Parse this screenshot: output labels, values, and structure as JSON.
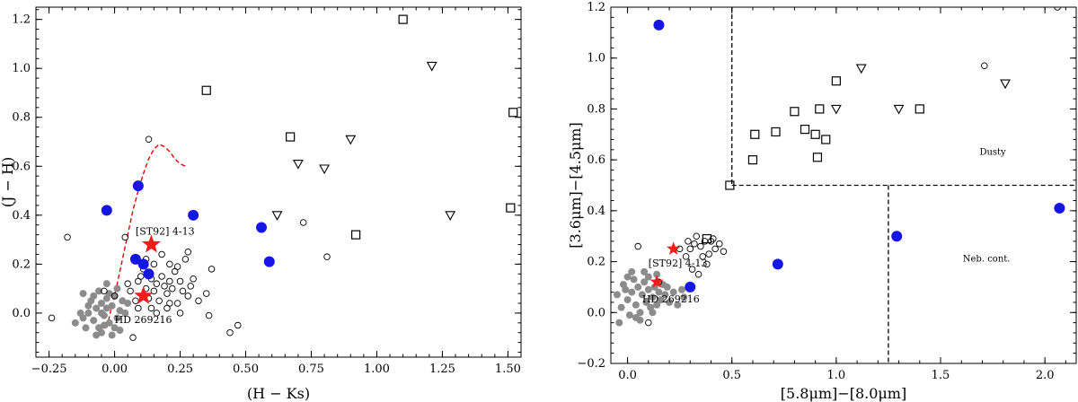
{
  "chart_data": [
    {
      "type": "scatter",
      "xlabel": "(H − Ks)",
      "ylabel": "(J − H)",
      "xlim": [
        -0.3,
        1.55
      ],
      "ylim": [
        -0.18,
        1.25
      ],
      "xticks": [
        -0.25,
        0.0,
        0.25,
        0.5,
        0.75,
        1.0,
        1.25,
        1.5
      ],
      "xtick_labels": [
        "−0.25",
        "0.00",
        "0.25",
        "0.50",
        "0.75",
        "1.00",
        "1.25",
        "1.50"
      ],
      "yticks": [
        0.0,
        0.2,
        0.4,
        0.6,
        0.8,
        1.0,
        1.2
      ],
      "ytick_labels": [
        "0.0",
        "0.2",
        "0.4",
        "0.6",
        "0.8",
        "1.0",
        "1.2"
      ],
      "series": [
        {
          "marker": "circle-filled",
          "color": "#8c8c8c",
          "points": [
            [
              -0.15,
              -0.04
            ],
            [
              -0.12,
              -0.02
            ],
            [
              -0.1,
              0.0
            ],
            [
              -0.08,
              -0.03
            ],
            [
              -0.07,
              0.02
            ],
            [
              -0.06,
              -0.06
            ],
            [
              -0.05,
              0.04
            ],
            [
              -0.04,
              -0.01
            ],
            [
              -0.03,
              0.06
            ],
            [
              -0.02,
              -0.04
            ],
            [
              -0.01,
              0.03
            ],
            [
              0.0,
              0.07
            ],
            [
              0.01,
              -0.02
            ],
            [
              0.02,
              0.01
            ],
            [
              0.03,
              0.05
            ],
            [
              -0.09,
              0.05
            ],
            [
              -0.11,
              -0.06
            ],
            [
              -0.05,
              -0.08
            ],
            [
              0.0,
              -0.06
            ],
            [
              0.04,
              0.0
            ],
            [
              -0.02,
              0.08
            ],
            [
              -0.06,
              0.09
            ],
            [
              -0.1,
              0.03
            ],
            [
              -0.04,
              -0.05
            ],
            [
              0.02,
              -0.07
            ],
            [
              -0.08,
              0.07
            ],
            [
              -0.03,
              0.12
            ],
            [
              0.01,
              0.1
            ],
            [
              -0.13,
              0.0
            ],
            [
              -0.07,
              -0.09
            ],
            [
              -0.12,
              0.08
            ],
            [
              -0.03,
              0.02
            ],
            [
              -0.01,
              -0.09
            ],
            [
              0.05,
              0.04
            ],
            [
              -0.05,
              0.0
            ]
          ]
        },
        {
          "marker": "circle-open",
          "color": "#000000",
          "points": [
            [
              -0.24,
              -0.02
            ],
            [
              -0.18,
              0.31
            ],
            [
              0.04,
              0.31
            ],
            [
              0.13,
              0.71
            ],
            [
              -0.04,
              0.09
            ],
            [
              0.0,
              0.07
            ],
            [
              0.05,
              0.12
            ],
            [
              0.06,
              0.09
            ],
            [
              0.08,
              0.05
            ],
            [
              0.09,
              0.13
            ],
            [
              0.1,
              0.15
            ],
            [
              0.11,
              0.18
            ],
            [
              0.12,
              0.1
            ],
            [
              0.13,
              0.06
            ],
            [
              0.14,
              0.14
            ],
            [
              0.15,
              0.09
            ],
            [
              0.16,
              0.12
            ],
            [
              0.17,
              0.05
            ],
            [
              0.18,
              0.15
            ],
            [
              0.19,
              0.11
            ],
            [
              0.2,
              0.08
            ],
            [
              0.21,
              0.13
            ],
            [
              0.22,
              0.1
            ],
            [
              0.23,
              0.17
            ],
            [
              0.24,
              0.04
            ],
            [
              0.25,
              0.13
            ],
            [
              0.26,
              0.09
            ],
            [
              0.27,
              0.22
            ],
            [
              0.28,
              0.07
            ],
            [
              0.29,
              0.11
            ],
            [
              0.3,
              0.14
            ],
            [
              0.32,
              0.05
            ],
            [
              0.15,
              0.2
            ],
            [
              0.18,
              0.24
            ],
            [
              0.21,
              0.2
            ],
            [
              0.24,
              0.19
            ],
            [
              0.28,
              0.25
            ],
            [
              0.12,
              0.22
            ],
            [
              0.09,
              0.02
            ],
            [
              0.14,
              0.02
            ],
            [
              0.2,
              0.02
            ],
            [
              0.25,
              0.0
            ],
            [
              0.16,
              0.0
            ],
            [
              0.21,
              0.04
            ],
            [
              0.35,
              0.08
            ],
            [
              0.36,
              -0.01
            ],
            [
              0.37,
              0.18
            ],
            [
              0.44,
              -0.08
            ],
            [
              0.47,
              -0.05
            ],
            [
              0.07,
              -0.1
            ],
            [
              0.72,
              0.37
            ],
            [
              0.81,
              0.23
            ]
          ]
        },
        {
          "marker": "circle-filled",
          "color": "#1515e6",
          "points": [
            [
              -0.03,
              0.42
            ],
            [
              0.09,
              0.52
            ],
            [
              0.3,
              0.4
            ],
            [
              0.08,
              0.22
            ],
            [
              0.11,
              0.2
            ],
            [
              0.13,
              0.16
            ],
            [
              0.56,
              0.35
            ],
            [
              0.59,
              0.21
            ]
          ]
        },
        {
          "marker": "square-open",
          "color": "#000000",
          "points": [
            [
              0.35,
              0.91
            ],
            [
              0.67,
              0.72
            ],
            [
              0.92,
              0.32
            ],
            [
              1.1,
              1.2
            ],
            [
              1.52,
              0.82
            ],
            [
              1.51,
              0.43
            ]
          ]
        },
        {
          "marker": "triangle-down-open",
          "color": "#000000",
          "points": [
            [
              0.7,
              0.61
            ],
            [
              0.8,
              0.59
            ],
            [
              0.9,
              0.71
            ],
            [
              1.21,
              1.01
            ],
            [
              1.28,
              0.4
            ],
            [
              0.62,
              0.4
            ]
          ]
        },
        {
          "marker": "star",
          "color": "#ff1a1a",
          "points": [
            [
              0.14,
              0.28
            ],
            [
              0.11,
              0.07
            ]
          ]
        }
      ],
      "curve": {
        "style": "dashed",
        "color": "#e60000",
        "points": [
          [
            -0.03,
            -0.06
          ],
          [
            -0.01,
            0.03
          ],
          [
            0.01,
            0.12
          ],
          [
            0.03,
            0.22
          ],
          [
            0.05,
            0.32
          ],
          [
            0.07,
            0.42
          ],
          [
            0.09,
            0.5
          ],
          [
            0.11,
            0.57
          ],
          [
            0.13,
            0.63
          ],
          [
            0.15,
            0.67
          ],
          [
            0.17,
            0.69
          ],
          [
            0.19,
            0.68
          ],
          [
            0.21,
            0.66
          ],
          [
            0.23,
            0.63
          ],
          [
            0.25,
            0.61
          ],
          [
            0.27,
            0.6
          ]
        ]
      },
      "annotations": [
        {
          "text": "[ST92] 4-13",
          "x": 0.08,
          "y": 0.32
        },
        {
          "text": "HD 269216",
          "x": 0.0,
          "y": -0.04
        }
      ]
    },
    {
      "type": "scatter",
      "xlabel": "[5.8μm]−[8.0μm]",
      "ylabel": "[3.6μm]−[4.5μm]",
      "xlim": [
        -0.08,
        2.15
      ],
      "ylim": [
        -0.2,
        1.2
      ],
      "xticks": [
        0.0,
        0.5,
        1.0,
        1.5,
        2.0
      ],
      "xtick_labels": [
        "0.0",
        "0.5",
        "1.0",
        "1.5",
        "2.0"
      ],
      "yticks": [
        -0.2,
        0.0,
        0.2,
        0.4,
        0.6,
        0.8,
        1.0,
        1.2
      ],
      "ytick_labels": [
        "−0.2",
        "0.0",
        "0.2",
        "0.4",
        "0.6",
        "0.8",
        "1.0",
        "1.2"
      ],
      "series": [
        {
          "marker": "circle-filled",
          "color": "#8c8c8c",
          "points": [
            [
              -0.05,
              0.07
            ],
            [
              -0.03,
              0.02
            ],
            [
              -0.02,
              0.11
            ],
            [
              0.0,
              0.05
            ],
            [
              0.01,
              -0.01
            ],
            [
              0.02,
              0.08
            ],
            [
              0.03,
              0.13
            ],
            [
              0.04,
              0.03
            ],
            [
              0.05,
              0.1
            ],
            [
              0.06,
              0.0
            ],
            [
              0.07,
              0.07
            ],
            [
              0.08,
              0.12
            ],
            [
              0.09,
              0.04
            ],
            [
              0.1,
              0.09
            ],
            [
              0.11,
              0.02
            ],
            [
              0.12,
              0.06
            ],
            [
              0.13,
              0.1
            ],
            [
              0.14,
              0.03
            ],
            [
              0.15,
              0.08
            ],
            [
              0.16,
              0.05
            ],
            [
              0.17,
              0.11
            ],
            [
              0.18,
              0.07
            ],
            [
              0.2,
              0.04
            ],
            [
              0.22,
              0.08
            ],
            [
              0.24,
              0.03
            ],
            [
              0.26,
              0.09
            ],
            [
              0.02,
              0.16
            ],
            [
              0.0,
              0.14
            ],
            [
              -0.04,
              -0.04
            ],
            [
              0.06,
              -0.03
            ],
            [
              0.1,
              0.14
            ],
            [
              0.14,
              0.15
            ],
            [
              0.19,
              0.1
            ],
            [
              0.08,
              0.16
            ],
            [
              -0.01,
              0.09
            ],
            [
              0.04,
              -0.02
            ],
            [
              0.12,
              0.0
            ],
            [
              0.27,
              0.06
            ]
          ]
        },
        {
          "marker": "circle-open",
          "color": "#000000",
          "points": [
            [
              0.05,
              0.26
            ],
            [
              0.25,
              0.25
            ],
            [
              0.28,
              0.22
            ],
            [
              0.3,
              0.25
            ],
            [
              0.31,
              0.17
            ],
            [
              0.32,
              0.27
            ],
            [
              0.33,
              0.3
            ],
            [
              0.35,
              0.26
            ],
            [
              0.36,
              0.22
            ],
            [
              0.38,
              0.19
            ],
            [
              0.4,
              0.28
            ],
            [
              0.42,
              0.25
            ],
            [
              0.44,
              0.27
            ],
            [
              0.46,
              0.24
            ],
            [
              0.34,
              0.15
            ],
            [
              0.37,
              0.28
            ],
            [
              0.39,
              0.23
            ],
            [
              0.41,
              0.29
            ],
            [
              0.1,
              -0.04
            ],
            [
              0.15,
              0.12
            ],
            [
              0.29,
              0.28
            ],
            [
              1.71,
              0.97
            ],
            [
              2.06,
              1.2
            ]
          ]
        },
        {
          "marker": "circle-filled",
          "color": "#1515e6",
          "points": [
            [
              0.15,
              1.13
            ],
            [
              0.3,
              0.1
            ],
            [
              0.72,
              0.19
            ],
            [
              1.29,
              0.3
            ],
            [
              2.07,
              0.41
            ]
          ]
        },
        {
          "marker": "square-open",
          "color": "#000000",
          "points": [
            [
              0.38,
              0.29
            ],
            [
              0.49,
              0.5
            ],
            [
              0.6,
              0.6
            ],
            [
              0.61,
              0.7
            ],
            [
              0.71,
              0.71
            ],
            [
              0.8,
              0.79
            ],
            [
              0.85,
              0.72
            ],
            [
              0.9,
              0.7
            ],
            [
              0.91,
              0.61
            ],
            [
              0.92,
              0.8
            ],
            [
              0.95,
              0.68
            ],
            [
              1.0,
              0.91
            ],
            [
              1.4,
              0.8
            ]
          ]
        },
        {
          "marker": "triangle-down-open",
          "color": "#000000",
          "points": [
            [
              1.0,
              0.8
            ],
            [
              1.12,
              0.96
            ],
            [
              1.3,
              0.8
            ],
            [
              1.81,
              0.9
            ]
          ]
        },
        {
          "marker": "star",
          "color": "#ff1a1a",
          "points": [
            [
              0.22,
              0.25
            ],
            [
              0.14,
              0.12
            ]
          ]
        }
      ],
      "boundaries": [
        {
          "from": [
            0.5,
            1.2
          ],
          "to": [
            0.5,
            0.5
          ]
        },
        {
          "from": [
            0.5,
            0.5
          ],
          "to": [
            2.15,
            0.5
          ]
        },
        {
          "from": [
            1.25,
            0.5
          ],
          "to": [
            1.25,
            -0.2
          ]
        }
      ],
      "annotations": [
        {
          "text": "[ST92] 4-13",
          "x": 0.1,
          "y": 0.18
        },
        {
          "text": "HD 269216",
          "x": 0.07,
          "y": 0.04
        }
      ],
      "region_labels": [
        {
          "text": "Dusty",
          "x": 1.75,
          "y": 0.62
        },
        {
          "text": "Neb. cont.",
          "x": 1.72,
          "y": 0.2
        }
      ]
    }
  ]
}
